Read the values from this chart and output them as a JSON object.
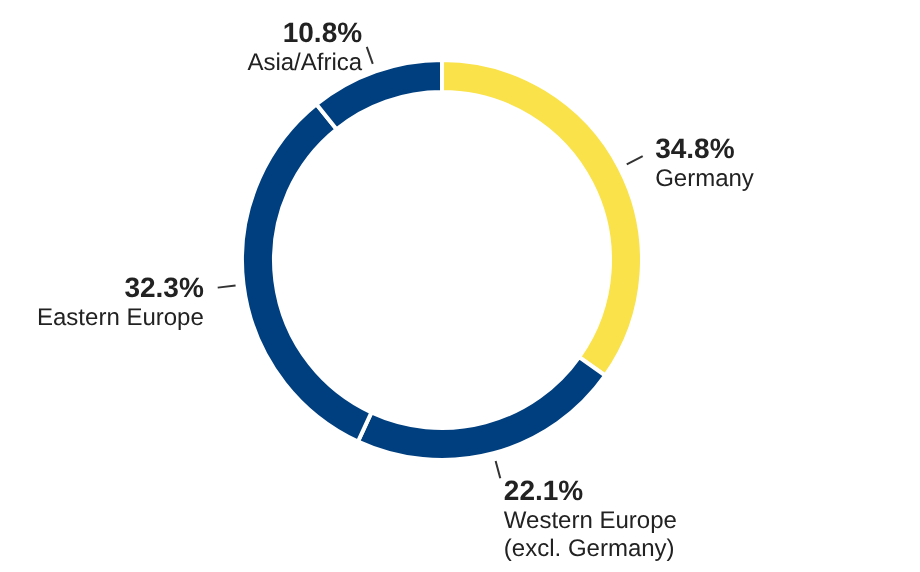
{
  "chart_data": {
    "type": "donut",
    "categories": [
      "Germany",
      "Western Europe (excl. Germany)",
      "Eastern Europe",
      "Asia/Africa"
    ],
    "values": [
      34.8,
      22.1,
      32.3,
      10.8
    ],
    "colors": [
      "#f9e24a",
      "#003f7f",
      "#003f7f",
      "#003f7f"
    ],
    "value_labels": [
      "34.8%",
      "22.1%",
      "32.3%",
      "10.8%"
    ]
  }
}
